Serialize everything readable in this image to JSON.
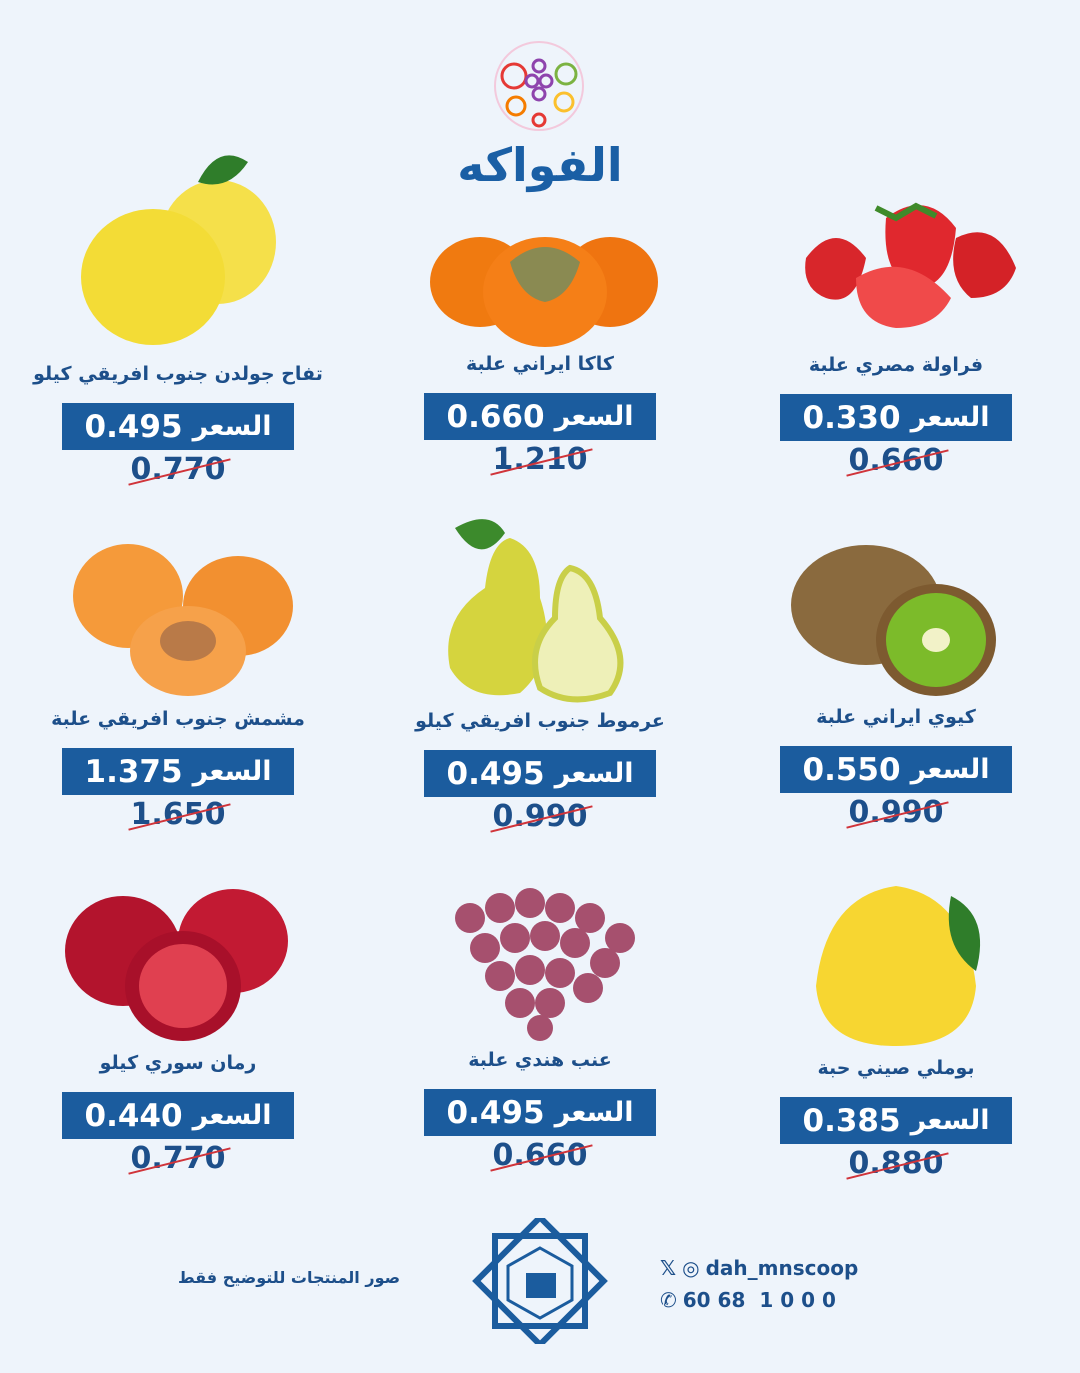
{
  "header": {
    "title": "الفواكه",
    "logo": "fruit-circle-logo"
  },
  "colors": {
    "background": "#eef4fb",
    "price_box": "#1b5c9e",
    "text": "#1d4f8a",
    "strike": "#d0343a"
  },
  "price_label": "السعر",
  "products": [
    {
      "name": "فراولة مصري علبة",
      "price": "0.330",
      "old_price": "0.660",
      "image": "strawberry"
    },
    {
      "name": "كاكا ايراني علبة",
      "price": "0.660",
      "old_price": "1.210",
      "image": "persimmon"
    },
    {
      "name": "تفاح جولدن جنوب افريقي كيلو",
      "price": "0.495",
      "old_price": "0.770",
      "image": "golden-apple"
    },
    {
      "name": "كيوي ايراني علبة",
      "price": "0.550",
      "old_price": "0.990",
      "image": "kiwi"
    },
    {
      "name": "عرموط جنوب افريقي كيلو",
      "price": "0.495",
      "old_price": "0.990",
      "image": "pear"
    },
    {
      "name": "مشمش جنوب افريقي علبة",
      "price": "1.375",
      "old_price": "1.650",
      "image": "apricot"
    },
    {
      "name": "بوملي صيني حبة",
      "price": "0.385",
      "old_price": "0.880",
      "image": "pomelo"
    },
    {
      "name": "عنب هندي علبة",
      "price": "0.495",
      "old_price": "0.660",
      "image": "grapes"
    },
    {
      "name": "رمان سوري كيلو",
      "price": "0.440",
      "old_price": "0.770",
      "image": "pomegranate"
    }
  ],
  "footer": {
    "note": "صور المنتجات للتوضيح فقط",
    "handle": "dah_mnscoop",
    "phone": "60 68  1 0 0 0",
    "seal": "co-op-seal"
  }
}
